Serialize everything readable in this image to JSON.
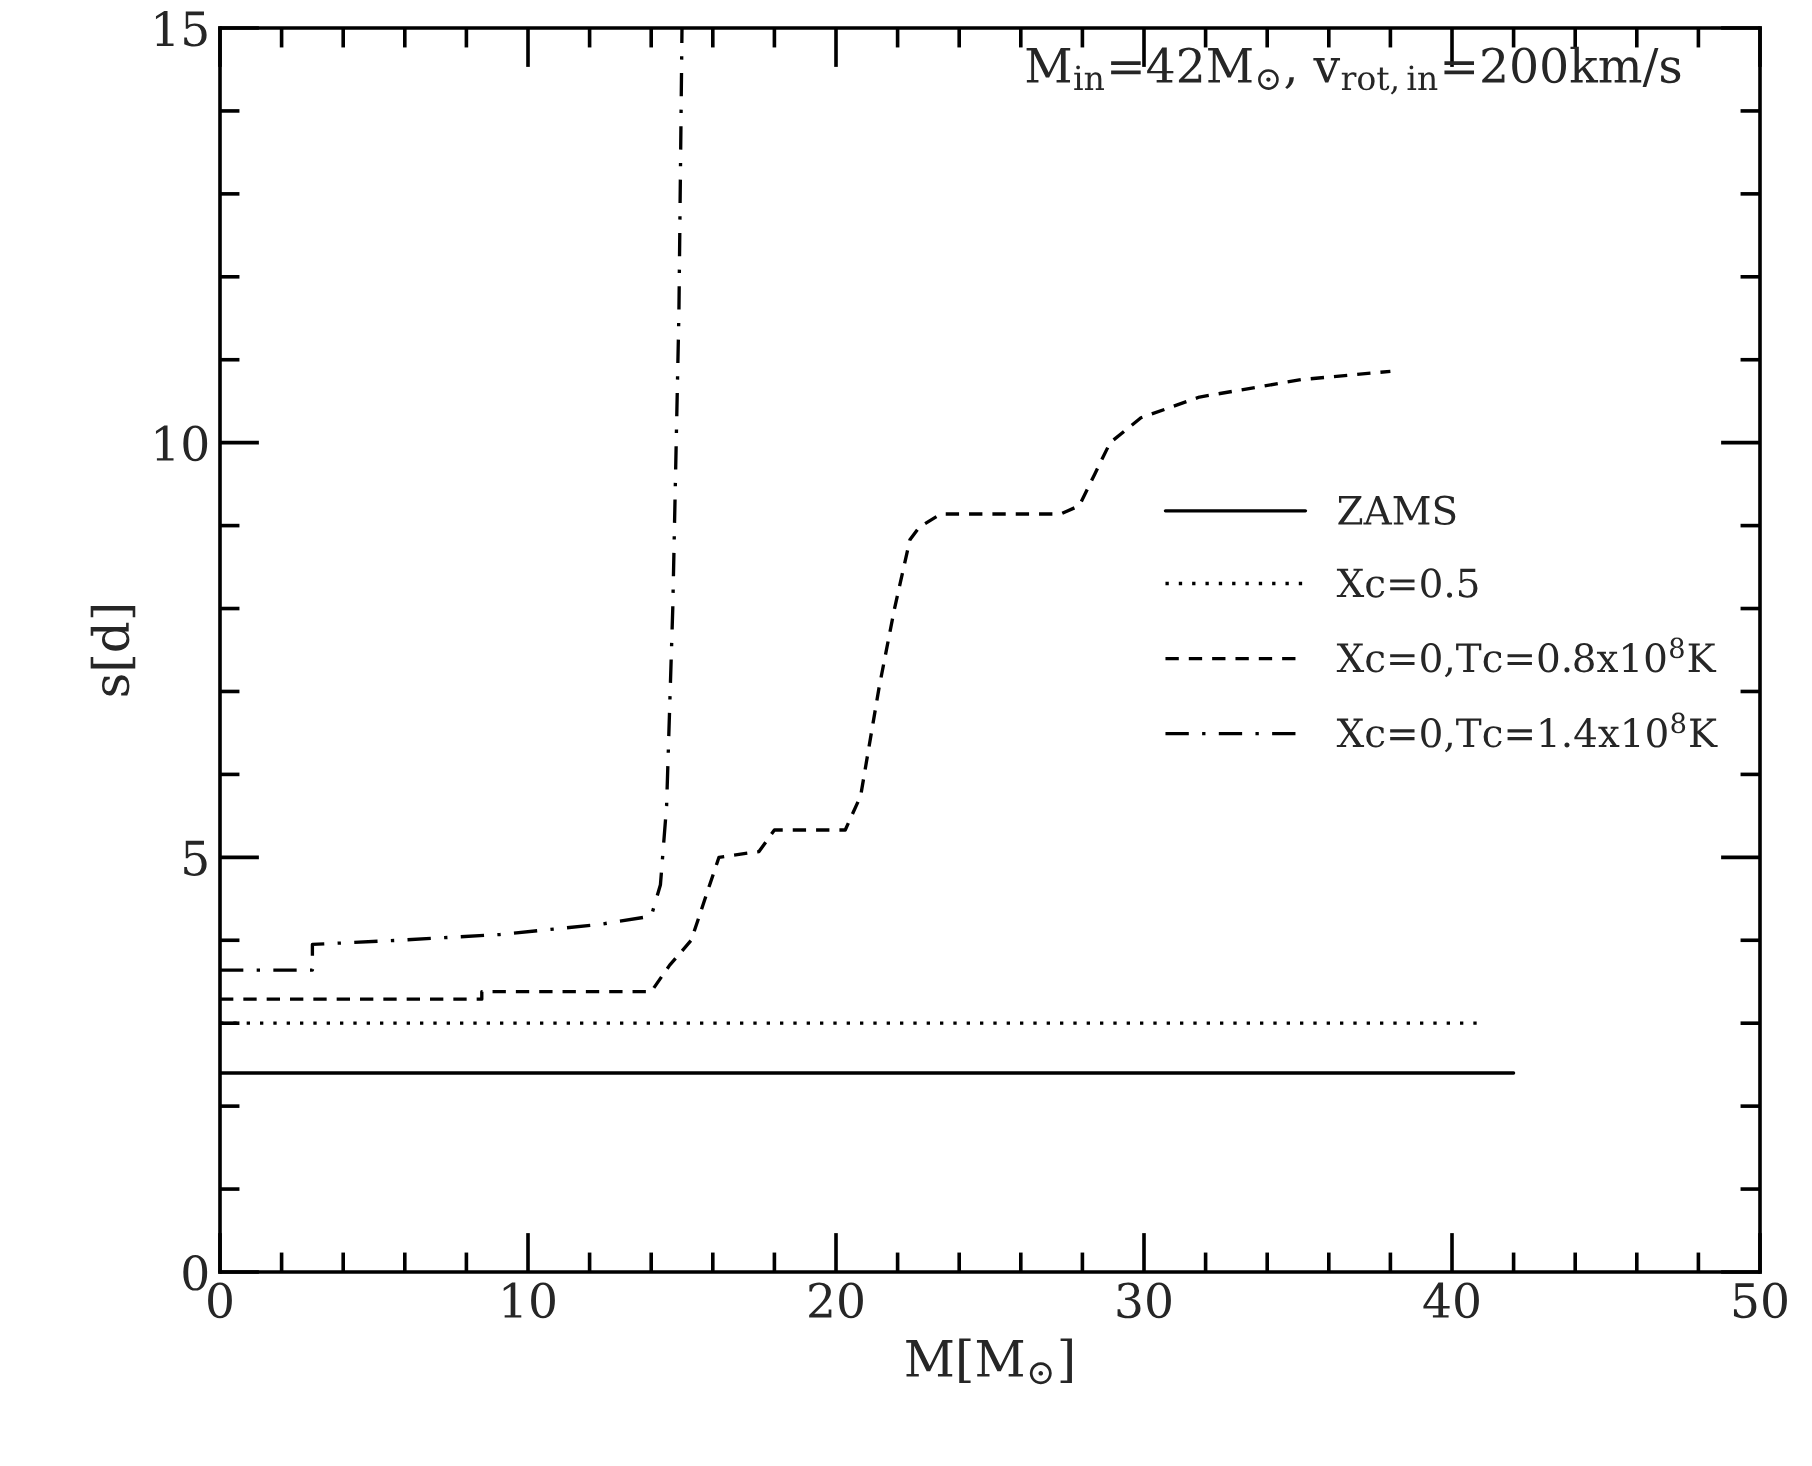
{
  "chart_data": {
    "type": "line",
    "xlabel": "M[M$_{⊙}$]",
    "ylabel": "s[d]",
    "annotations": [
      "M$_{in}$=42M$_{⊙}$, v$_{rot,in}$=200km/s"
    ],
    "xlim": [
      0,
      50
    ],
    "ylim": [
      0,
      15
    ],
    "xticks": [
      0,
      {
        "value": 2,
        "label": null
      },
      {
        "value": 4,
        "label": null
      },
      {
        "value": 6,
        "label": null
      },
      {
        "value": 8,
        "label": null
      },
      10,
      {
        "value": 12,
        "label": null
      },
      {
        "value": 14,
        "label": null
      },
      {
        "value": 16,
        "label": null
      },
      {
        "value": 18,
        "label": null
      },
      20,
      {
        "value": 22,
        "label": null
      },
      {
        "value": 24,
        "label": null
      },
      {
        "value": 26,
        "label": null
      },
      {
        "value": 28,
        "label": null
      },
      30,
      {
        "value": 32,
        "label": null
      },
      {
        "value": 34,
        "label": null
      },
      {
        "value": 36,
        "label": null
      },
      {
        "value": 38,
        "label": null
      },
      40,
      {
        "value": 42,
        "label": null
      },
      {
        "value": 44,
        "label": null
      },
      {
        "value": 46,
        "label": null
      },
      {
        "value": 48,
        "label": null
      },
      50
    ],
    "yticks": [
      0,
      {
        "value": 1,
        "label": null
      },
      {
        "value": 2,
        "label": null
      },
      {
        "value": 3,
        "label": null
      },
      {
        "value": 4,
        "label": null
      },
      5,
      {
        "value": 6,
        "label": null
      },
      {
        "value": 7,
        "label": null
      },
      {
        "value": 8,
        "label": null
      },
      {
        "value": 9,
        "label": null
      },
      10,
      {
        "value": 11,
        "label": null
      },
      {
        "value": 12,
        "label": null
      },
      {
        "value": 13,
        "label": null
      },
      {
        "value": 14,
        "label": null
      },
      15
    ],
    "grid": false,
    "legend": "right",
    "series": [
      {
        "name": "ZAMS",
        "color": "#000000",
        "line_style": "solid",
        "x": [
          0,
          42
        ],
        "values": [
          2.4,
          2.4
        ]
      },
      {
        "name": "Xc=0.5",
        "color": "#000000",
        "line_style": "dotted",
        "x": [
          0,
          41
        ],
        "values": [
          3.0,
          3.0
        ]
      },
      {
        "name": "Xc=0,Tc=0.8x10$^{8}$K",
        "color": "#000000",
        "line_style": "dashed",
        "x": [
          0,
          8.5,
          8.5,
          14.0,
          14.6,
          15.3,
          15.9,
          16.2,
          17.5,
          18.0,
          20.3,
          20.8,
          21.4,
          21.9,
          22.4,
          22.7,
          23.4,
          27.3,
          27.9,
          28.4,
          28.9,
          29.9,
          31.8,
          35.1,
          38.0
        ],
        "values": [
          3.29,
          3.29,
          3.38,
          3.38,
          3.7,
          4.0,
          4.67,
          5.0,
          5.07,
          5.33,
          5.33,
          5.74,
          7.05,
          8.0,
          8.83,
          8.98,
          9.14,
          9.14,
          9.24,
          9.62,
          10.0,
          10.3,
          10.55,
          10.76,
          10.86
        ]
      },
      {
        "name": "Xc=0,Tc=1.4x10$^{8}$K",
        "color": "#000000",
        "line_style": "dashdot",
        "x": [
          0,
          3.0,
          3.0,
          5.8,
          9.1,
          12.3,
          14.0,
          14.3,
          14.5,
          14.7,
          14.9,
          15.0
        ],
        "values": [
          3.64,
          3.64,
          3.95,
          4.0,
          4.07,
          4.19,
          4.29,
          4.67,
          5.62,
          8.0,
          11.57,
          15.0
        ]
      }
    ]
  }
}
